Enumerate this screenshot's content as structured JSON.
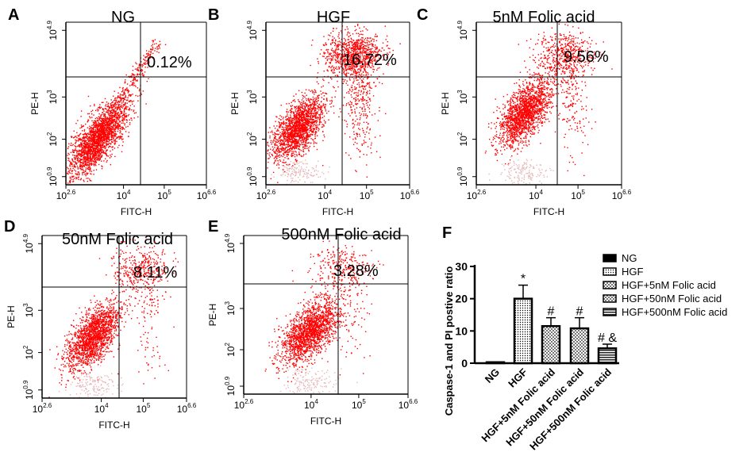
{
  "panels": [
    {
      "letter": "A",
      "title": "NG",
      "pct": "0.12%",
      "xlabel": "FITC-H",
      "ylabel": "PE-H",
      "xticks": [
        {
          "base": "10",
          "exp": "2.6"
        },
        {
          "base": "10",
          "exp": "4"
        },
        {
          "base": "10",
          "exp": "5"
        },
        {
          "base": "10",
          "exp": "6.6"
        }
      ],
      "yticks": [
        {
          "base": "10",
          "exp": "0.9"
        },
        {
          "base": "10",
          "exp": "2"
        },
        {
          "base": "10",
          "exp": "3"
        },
        {
          "base": "10",
          "exp": "4.9"
        }
      ]
    },
    {
      "letter": "B",
      "title": "HGF",
      "pct": "16.72%",
      "xlabel": "FITC-H",
      "ylabel": "PE-H",
      "xticks": [
        {
          "base": "10",
          "exp": "2.6"
        },
        {
          "base": "10",
          "exp": "4"
        },
        {
          "base": "10",
          "exp": "5"
        },
        {
          "base": "10",
          "exp": "6.6"
        }
      ],
      "yticks": [
        {
          "base": "10",
          "exp": "0.9"
        },
        {
          "base": "10",
          "exp": "2"
        },
        {
          "base": "10",
          "exp": "3"
        },
        {
          "base": "10",
          "exp": "4.9"
        }
      ]
    },
    {
      "letter": "C",
      "title": "5nM Folic acid",
      "pct": "9.56%",
      "xlabel": "FITC-H",
      "ylabel": "PE-H",
      "xticks": [
        {
          "base": "10",
          "exp": "2.6"
        },
        {
          "base": "10",
          "exp": "4"
        },
        {
          "base": "10",
          "exp": "5"
        },
        {
          "base": "10",
          "exp": "6.6"
        }
      ],
      "yticks": [
        {
          "base": "10",
          "exp": "0.9"
        },
        {
          "base": "10",
          "exp": "2"
        },
        {
          "base": "10",
          "exp": "3"
        },
        {
          "base": "10",
          "exp": "4.9"
        }
      ]
    },
    {
      "letter": "D",
      "title": "50nM Folic acid",
      "pct": "8.11%",
      "xlabel": "FITC-H",
      "ylabel": "PE-H",
      "xticks": [
        {
          "base": "10",
          "exp": "2.6"
        },
        {
          "base": "10",
          "exp": "4"
        },
        {
          "base": "10",
          "exp": "5"
        },
        {
          "base": "10",
          "exp": "6.6"
        }
      ],
      "yticks": [
        {
          "base": "10",
          "exp": "0.9"
        },
        {
          "base": "10",
          "exp": "2"
        },
        {
          "base": "10",
          "exp": "3"
        },
        {
          "base": "10",
          "exp": "4.9"
        }
      ]
    },
    {
      "letter": "E",
      "title": "500nM Folic acid",
      "pct": "3.28%",
      "xlabel": "FITC-H",
      "ylabel": "PE-H",
      "xticks": [
        {
          "base": "10",
          "exp": "2.6"
        },
        {
          "base": "10",
          "exp": "4"
        },
        {
          "base": "10",
          "exp": "5"
        },
        {
          "base": "10",
          "exp": "6.6"
        }
      ],
      "yticks": [
        {
          "base": "10",
          "exp": "0.9"
        },
        {
          "base": "10",
          "exp": "2"
        },
        {
          "base": "10",
          "exp": "3"
        },
        {
          "base": "10",
          "exp": "4.9"
        }
      ]
    }
  ],
  "chart_data": {
    "letter": "F",
    "type": "bar",
    "categories": [
      "NG",
      "HGF",
      "HGF+5nM Folic acid",
      "HGF+50nM Folic acid",
      "HGF+500nM Folic acid"
    ],
    "values": [
      0.3,
      20,
      11.5,
      10.8,
      4.6
    ],
    "errors": [
      0.2,
      4.2,
      2.6,
      3.3,
      1.3
    ],
    "annotations": [
      "",
      "*",
      "#",
      "#",
      "# &"
    ],
    "ylabel": "Caspase-1 and PI postive ratio",
    "ylim": [
      0,
      30
    ],
    "yticks": [
      0,
      10,
      20,
      30
    ],
    "legend": [
      "NG",
      "HGF",
      "HGF+5nM Folic acid",
      "HGF+50nM Folic acid",
      "HGF+500nM Folic acid"
    ],
    "legend_position": "top-right"
  },
  "colors": {
    "dots": "#ff0000",
    "faint_dots": "#e6b8b8",
    "axis": "#000000"
  }
}
